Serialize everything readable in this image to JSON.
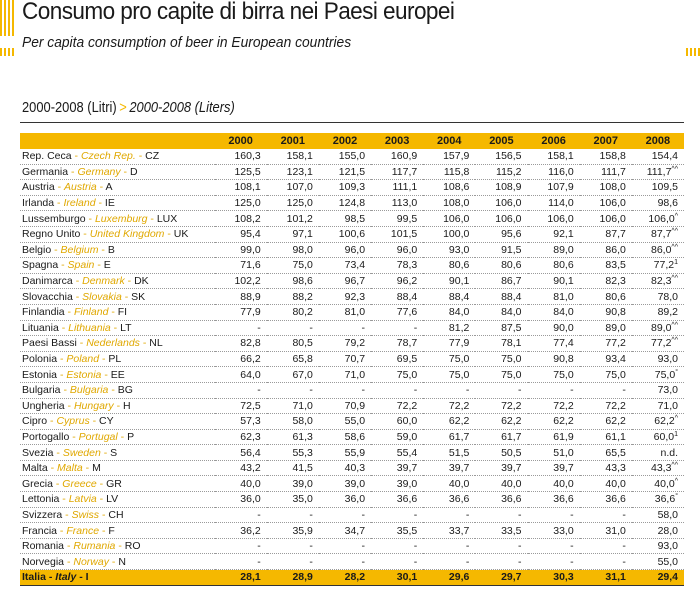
{
  "title_it": "Consumo pro capite di birra nei Paesi europei",
  "title_en": "Per capita consumption of beer in European countries",
  "subtitle": {
    "it": "2000-2008 (Litri)",
    "arrow": ">",
    "en": "2000-2008 (Liters)"
  },
  "colors": {
    "accent": "#f5b800",
    "country_en": "#e0a800"
  },
  "table": {
    "years": [
      "2000",
      "2001",
      "2002",
      "2003",
      "2004",
      "2005",
      "2006",
      "2007",
      "2008"
    ],
    "rows": [
      {
        "it": "Rep. Ceca",
        "en": "Czech Rep.",
        "code": "CZ",
        "values": [
          "160,3",
          "158,1",
          "155,0",
          "160,9",
          "157,9",
          "156,5",
          "158,1",
          "158,8",
          "154,4"
        ],
        "note": ""
      },
      {
        "it": "Germania",
        "en": "Germany",
        "code": "D",
        "values": [
          "125,5",
          "123,1",
          "121,5",
          "117,7",
          "115,8",
          "115,2",
          "116,0",
          "111,7",
          "111,7"
        ],
        "note": "^^"
      },
      {
        "it": "Austria",
        "en": "Austria",
        "code": "A",
        "values": [
          "108,1",
          "107,0",
          "109,3",
          "111,1",
          "108,6",
          "108,9",
          "107,9",
          "108,0",
          "109,5"
        ],
        "note": ""
      },
      {
        "it": "Irlanda",
        "en": "Ireland",
        "code": "IE",
        "values": [
          "125,0",
          "125,0",
          "124,8",
          "113,0",
          "108,0",
          "106,0",
          "114,0",
          "106,0",
          "98,6"
        ],
        "note": ""
      },
      {
        "it": "Lussemburgo",
        "en": "Luxemburg",
        "code": "LUX",
        "values": [
          "108,2",
          "101,2",
          "98,5",
          "99,5",
          "106,0",
          "106,0",
          "106,0",
          "106,0",
          "106,0"
        ],
        "note": "^"
      },
      {
        "it": "Regno Unito",
        "en": "United Kingdom",
        "code": "UK",
        "values": [
          "95,4",
          "97,1",
          "100,6",
          "101,5",
          "100,0",
          "95,6",
          "92,1",
          "87,7",
          "87,7"
        ],
        "note": "^^"
      },
      {
        "it": "Belgio",
        "en": "Belgium",
        "code": "B",
        "values": [
          "99,0",
          "98,0",
          "96,0",
          "96,0",
          "93,0",
          "91,5",
          "89,0",
          "86,0",
          "86,0"
        ],
        "note": "^^"
      },
      {
        "it": "Spagna",
        "en": "Spain",
        "code": "E",
        "values": [
          "71,6",
          "75,0",
          "73,4",
          "78,3",
          "80,6",
          "80,6",
          "80,6",
          "83,5",
          "77,2"
        ],
        "note": "1"
      },
      {
        "it": "Danimarca",
        "en": "Denmark",
        "code": "DK",
        "values": [
          "102,2",
          "98,6",
          "96,7",
          "96,2",
          "90,1",
          "86,7",
          "90,1",
          "82,3",
          "82,3"
        ],
        "note": "^^"
      },
      {
        "it": "Slovacchia",
        "en": "Slovakia",
        "code": "SK",
        "values": [
          "88,9",
          "88,2",
          "92,3",
          "88,4",
          "88,4",
          "88,4",
          "81,0",
          "80,6",
          "78,0"
        ],
        "note": ""
      },
      {
        "it": "Finlandia",
        "en": "Finland",
        "code": "FI",
        "values": [
          "77,9",
          "80,2",
          "81,0",
          "77,6",
          "84,0",
          "84,0",
          "84,0",
          "90,8",
          "89,2"
        ],
        "note": ""
      },
      {
        "it": "Lituania",
        "en": "Lithuania",
        "code": "LT",
        "values": [
          "-",
          "-",
          "-",
          "-",
          "81,2",
          "87,5",
          "90,0",
          "89,0",
          "89,0"
        ],
        "note": "^^"
      },
      {
        "it": "Paesi Bassi",
        "en": "Nederlands",
        "code": "NL",
        "values": [
          "82,8",
          "80,5",
          "79,2",
          "78,7",
          "77,9",
          "78,1",
          "77,4",
          "77,2",
          "77,2"
        ],
        "note": "^^"
      },
      {
        "it": "Polonia",
        "en": "Poland",
        "code": "PL",
        "values": [
          "66,2",
          "65,8",
          "70,7",
          "69,5",
          "75,0",
          "75,0",
          "90,8",
          "93,4",
          "93,0"
        ],
        "note": ""
      },
      {
        "it": "Estonia",
        "en": "Estonia",
        "code": "EE",
        "values": [
          "64,0",
          "67,0",
          "71,0",
          "75,0",
          "75,0",
          "75,0",
          "75,0",
          "75,0",
          "75,0"
        ],
        "note": "°"
      },
      {
        "it": "Bulgaria",
        "en": "Bulgaria",
        "code": "BG",
        "values": [
          "-",
          "-",
          "-",
          "-",
          "-",
          "-",
          "-",
          "-",
          "73,0"
        ],
        "note": ""
      },
      {
        "it": "Ungheria",
        "en": "Hungary",
        "code": "H",
        "values": [
          "72,5",
          "71,0",
          "70,9",
          "72,2",
          "72,2",
          "72,2",
          "72,2",
          "72,2",
          "71,0"
        ],
        "note": ""
      },
      {
        "it": "Cipro",
        "en": "Cyprus",
        "code": "CY",
        "values": [
          "57,3",
          "58,0",
          "55,0",
          "60,0",
          "62,2",
          "62,2",
          "62,2",
          "62,2",
          "62,2"
        ],
        "note": "^"
      },
      {
        "it": "Portogallo",
        "en": "Portugal",
        "code": "P",
        "values": [
          "62,3",
          "61,3",
          "58,6",
          "59,0",
          "61,7",
          "61,7",
          "61,9",
          "61,1",
          "60,0"
        ],
        "note": "1"
      },
      {
        "it": "Svezia",
        "en": "Sweden",
        "code": "S",
        "values": [
          "56,4",
          "55,3",
          "55,9",
          "55,4",
          "51,5",
          "50,5",
          "51,0",
          "65,5",
          "n.d."
        ],
        "note": ""
      },
      {
        "it": "Malta",
        "en": "Malta",
        "code": "M",
        "values": [
          "43,2",
          "41,5",
          "40,3",
          "39,7",
          "39,7",
          "39,7",
          "39,7",
          "43,3",
          "43,3"
        ],
        "note": "^^"
      },
      {
        "it": "Grecia",
        "en": "Greece",
        "code": "GR",
        "values": [
          "40,0",
          "39,0",
          "39,0",
          "39,0",
          "40,0",
          "40,0",
          "40,0",
          "40,0",
          "40,0"
        ],
        "note": "^"
      },
      {
        "it": "Lettonia",
        "en": "Latvia",
        "code": "LV",
        "values": [
          "36,0",
          "35,0",
          "36,0",
          "36,6",
          "36,6",
          "36,6",
          "36,6",
          "36,6",
          "36,6"
        ],
        "note": "°"
      },
      {
        "it": "Svizzera",
        "en": "Swiss",
        "code": "CH",
        "values": [
          "-",
          "-",
          "-",
          "-",
          "-",
          "-",
          "-",
          "-",
          "58,0"
        ],
        "note": ""
      },
      {
        "it": "Francia",
        "en": "France",
        "code": "F",
        "values": [
          "36,2",
          "35,9",
          "34,7",
          "35,5",
          "33,7",
          "33,5",
          "33,0",
          "31,0",
          "28,0"
        ],
        "note": ""
      },
      {
        "it": "Romania",
        "en": "Rumania",
        "code": "RO",
        "values": [
          "-",
          "-",
          "-",
          "-",
          "-",
          "-",
          "-",
          "-",
          "93,0"
        ],
        "note": ""
      },
      {
        "it": "Norvegia",
        "en": "Norway",
        "code": "N",
        "values": [
          "-",
          "-",
          "-",
          "-",
          "-",
          "-",
          "-",
          "-",
          "55,0"
        ],
        "note": ""
      },
      {
        "it": "Italia",
        "en": "Italy",
        "code": "I",
        "values": [
          "28,1",
          "28,9",
          "28,2",
          "30,1",
          "29,6",
          "29,7",
          "30,3",
          "31,1",
          "29,4"
        ],
        "note": "",
        "highlight": true
      }
    ]
  }
}
